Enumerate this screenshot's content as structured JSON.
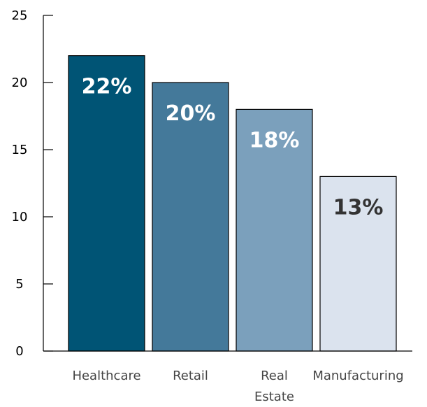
{
  "chart_data": {
    "type": "bar",
    "title": "",
    "xlabel": "",
    "ylabel": "",
    "categories": [
      [
        "Healthcare"
      ],
      [
        "Retail"
      ],
      [
        "Real",
        "Estate"
      ],
      [
        "Manufacturing"
      ]
    ],
    "values": [
      22,
      20,
      18,
      13
    ],
    "data_labels": [
      "22%",
      "20%",
      "18%",
      "13%"
    ],
    "ylim": [
      0,
      25
    ],
    "yticks": [
      0,
      5,
      10,
      15,
      20,
      25
    ],
    "grid": false,
    "legend": "none",
    "colors": {
      "bars": [
        "#005475",
        "#44799a",
        "#7ba0bc",
        "#dbe3ee"
      ],
      "labels": [
        "#ffffff",
        "#ffffff",
        "#ffffff",
        "#333333"
      ],
      "axis": "#000000"
    }
  }
}
